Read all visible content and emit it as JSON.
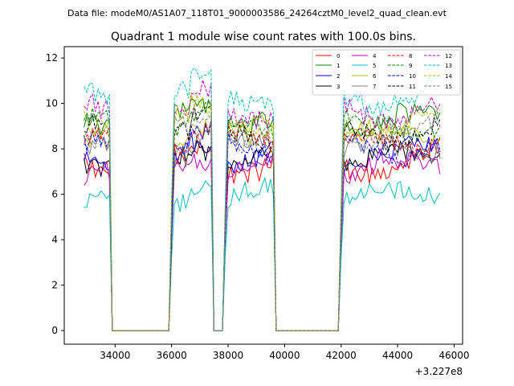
{
  "suptitle": "Data file: modeM0/AS1A07_118T01_9000003586_24264cztM0_level2_quad_clean.evt",
  "title": "Quadrant 1 module wise count rates with 100.0s bins.",
  "x_offset_label": "+3.227e8",
  "chart_data": {
    "type": "line",
    "title": "Quadrant 1 module wise count rates with 100.0s bins.",
    "xlabel": "",
    "ylabel": "",
    "x_offset": 322700000,
    "xlim": [
      32200,
      46300
    ],
    "ylim": [
      -0.6,
      12.5
    ],
    "xticks": [
      34000,
      36000,
      38000,
      40000,
      42000,
      44000,
      46000
    ],
    "xtick_labels": [
      "34000",
      "36000",
      "38000",
      "40000",
      "42000",
      "44000",
      "46000"
    ],
    "yticks": [
      0,
      2,
      4,
      6,
      8,
      10,
      12
    ],
    "ytick_labels": [
      "0",
      "2",
      "4",
      "6",
      "8",
      "10",
      "12"
    ],
    "legend_position": "top-right",
    "segments": [
      {
        "start": 32900,
        "end": 33800,
        "fall_end": 33950
      },
      {
        "start": 35950,
        "end": 37450,
        "rise_start": 36000,
        "fall_end": 37600
      },
      {
        "start": 37850,
        "end": 39650,
        "rise_start": 37750,
        "fall_end": 39800
      },
      {
        "start": 41950,
        "end": 45550,
        "rise_start": 41950,
        "fall_end": 45550
      }
    ],
    "gaps_value": 0,
    "series": [
      {
        "name": "0",
        "color": "#ff0000",
        "dash": "solid",
        "level": 7.3
      },
      {
        "name": "1",
        "color": "#008000",
        "dash": "solid",
        "level": 9.3
      },
      {
        "name": "2",
        "color": "#0000ff",
        "dash": "solid",
        "level": 7.7
      },
      {
        "name": "3",
        "color": "#000000",
        "dash": "solid",
        "level": 7.6
      },
      {
        "name": "4",
        "color": "#bf00bf",
        "dash": "solid",
        "level": 7.2
      },
      {
        "name": "5",
        "color": "#00bfbf",
        "dash": "solid",
        "level": 5.9
      },
      {
        "name": "6",
        "color": "#bfbf00",
        "dash": "solid",
        "level": 8.6
      },
      {
        "name": "7",
        "color": "#808080",
        "dash": "solid",
        "level": 8.0
      },
      {
        "name": "8",
        "color": "#ff0000",
        "dash": "dashed",
        "level": 8.3
      },
      {
        "name": "9",
        "color": "#008000",
        "dash": "dashed",
        "level": 9.0
      },
      {
        "name": "10",
        "color": "#0000ff",
        "dash": "dashed",
        "level": 8.0
      },
      {
        "name": "11",
        "color": "#000000",
        "dash": "dashed",
        "level": 8.7
      },
      {
        "name": "12",
        "color": "#bf00bf",
        "dash": "dashed",
        "level": 9.6
      },
      {
        "name": "13",
        "color": "#00bfbf",
        "dash": "dashed",
        "level": 10.3
      },
      {
        "name": "14",
        "color": "#bfbf00",
        "dash": "dashed",
        "level": 9.1
      },
      {
        "name": "15",
        "color": "#808080",
        "dash": "dashed",
        "level": 8.7
      }
    ]
  }
}
